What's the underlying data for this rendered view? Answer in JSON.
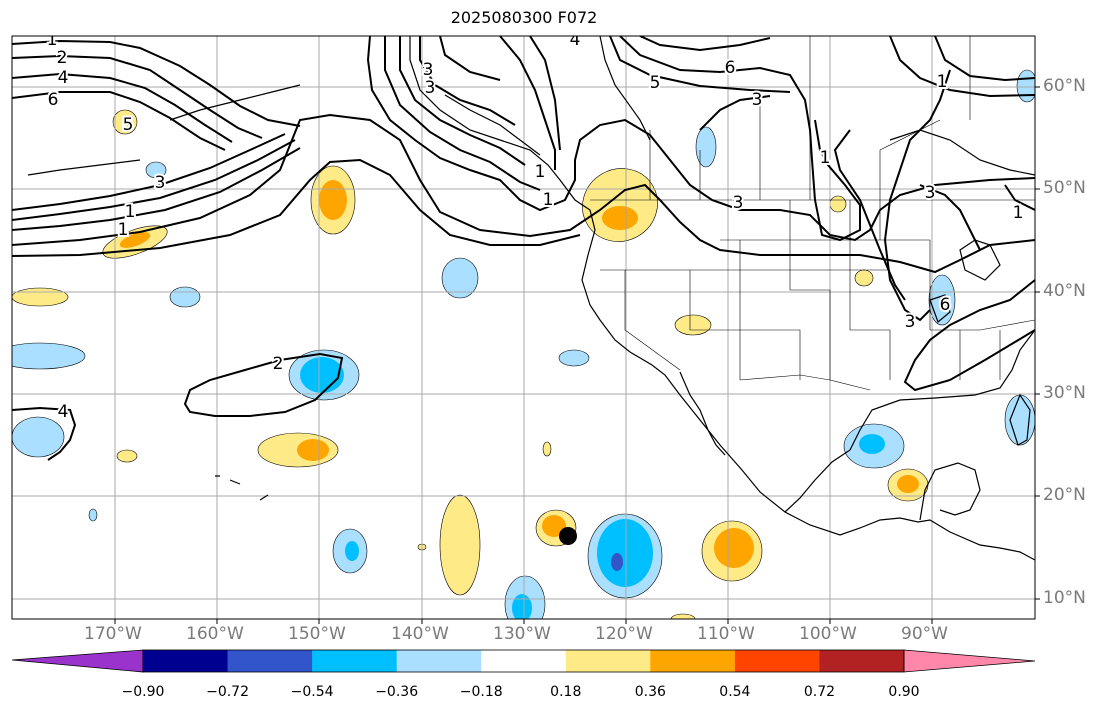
{
  "title": "2025080300 F072",
  "map": {
    "lat_labels": [
      "60°N",
      "50°N",
      "40°N",
      "30°N",
      "20°N",
      "10°N"
    ],
    "lon_labels": [
      "170°W",
      "160°W",
      "150°W",
      "140°W",
      "130°W",
      "120°W",
      "110°W",
      "100°W",
      "90°W"
    ],
    "contour_labels": [
      "1",
      "2",
      "4",
      "6",
      "3",
      "5",
      "4",
      "5",
      "6",
      "3",
      "1",
      "3",
      "3",
      "1",
      "1",
      "3",
      "3",
      "1",
      "1",
      "1",
      "1",
      "2",
      "4",
      "6",
      "3"
    ],
    "marker": {
      "lon": -126,
      "lat": 16
    }
  },
  "colorbar": {
    "labels": [
      "−0.90",
      "−0.72",
      "−0.54",
      "−0.36",
      "−0.18",
      "0.18",
      "0.36",
      "0.54",
      "0.72",
      "0.90"
    ],
    "colors": {
      "under": "#9933cc",
      "bins": [
        "#000090",
        "#3355cc",
        "#00bfff",
        "#aadfff",
        "#ffffff",
        "#ffea88",
        "#ffa500",
        "#ff4400",
        "#b22222"
      ],
      "over": "#ff88aa"
    }
  }
}
